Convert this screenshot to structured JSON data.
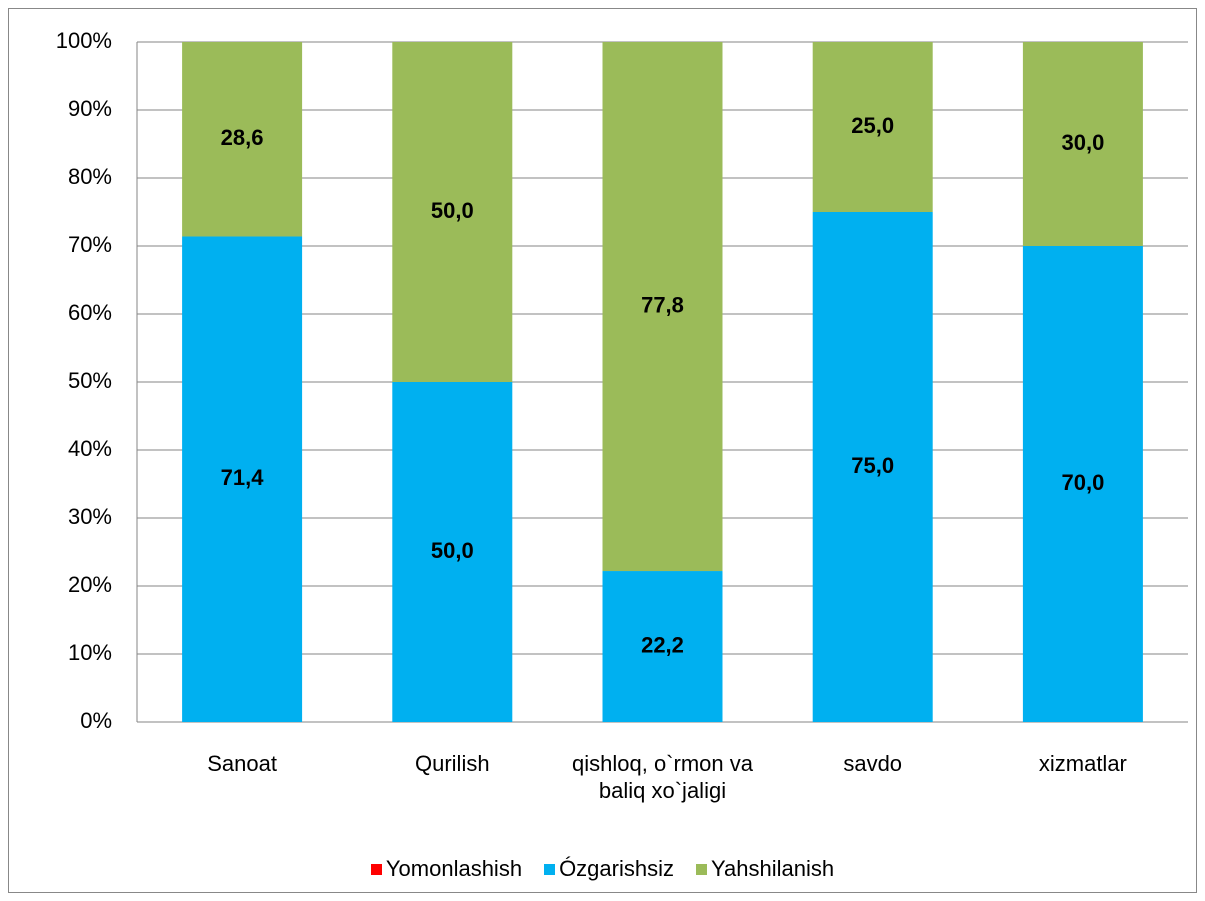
{
  "chart_data": {
    "type": "bar",
    "stacked": true,
    "categories": [
      "Sanoat",
      "Qurilish",
      "qishloq, o`rmon va baliq xo`jaligi",
      "savdo",
      "xizmatlar"
    ],
    "series": [
      {
        "name": "Yomonlashish",
        "color": "#ff0000",
        "values": [
          0,
          0,
          0,
          0,
          0
        ]
      },
      {
        "name": "Ózgarishsiz",
        "color": "#00b0f0",
        "values": [
          71.4,
          50.0,
          22.2,
          75.0,
          70.0
        ],
        "value_labels": [
          "71,4",
          "50,0",
          "22,2",
          "75,0",
          "70,0"
        ]
      },
      {
        "name": "Yahshilanish",
        "color": "#9bbb59",
        "values": [
          28.6,
          50.0,
          77.8,
          25.0,
          30.0
        ],
        "value_labels": [
          "28,6",
          "50,0",
          "77,8",
          "25,0",
          "30,0"
        ]
      }
    ],
    "ylim": [
      0,
      100
    ],
    "yticks": [
      {
        "value": 0,
        "label": "0%"
      },
      {
        "value": 10,
        "label": "10%"
      },
      {
        "value": 20,
        "label": "20%"
      },
      {
        "value": 30,
        "label": "30%"
      },
      {
        "value": 40,
        "label": "40%"
      },
      {
        "value": 50,
        "label": "50%"
      },
      {
        "value": 60,
        "label": "60%"
      },
      {
        "value": 70,
        "label": "70%"
      },
      {
        "value": 80,
        "label": "80%"
      },
      {
        "value": 90,
        "label": "90%"
      },
      {
        "value": 100,
        "label": "100%"
      }
    ],
    "grid": true,
    "legend": "bottom"
  }
}
